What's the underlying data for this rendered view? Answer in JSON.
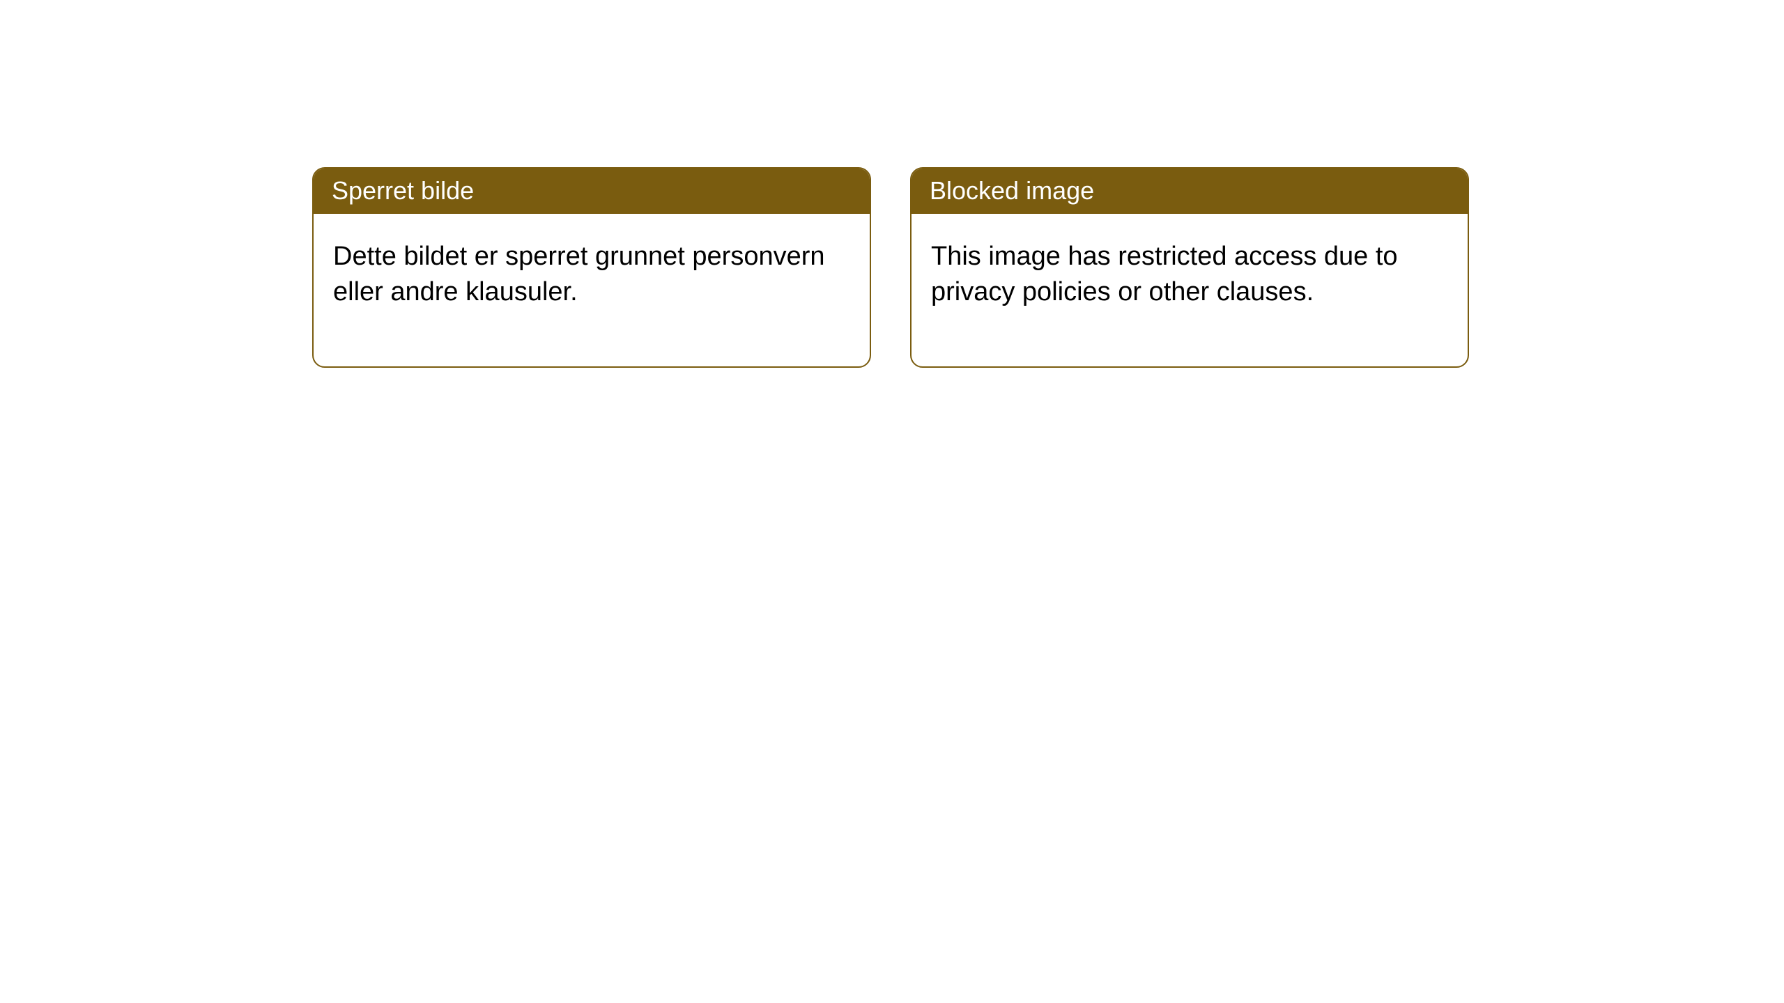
{
  "cards": [
    {
      "header": "Sperret bilde",
      "body": "Dette bildet er sperret grunnet personvern eller andre klausuler."
    },
    {
      "header": "Blocked image",
      "body": "This image has restricted access due to privacy policies or other clauses."
    }
  ],
  "style": {
    "header_bg": "#7a5c0f",
    "header_fg": "#ffffff",
    "border_color": "#7a5c0f",
    "body_fg": "#000000",
    "page_bg": "#ffffff",
    "border_radius": 18,
    "header_fontsize": 36,
    "body_fontsize": 38
  }
}
